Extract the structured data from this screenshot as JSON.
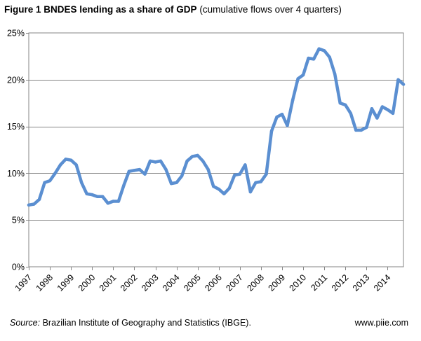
{
  "title": {
    "label": "Figure 1 BNDES lending as a share of GDP",
    "subtitle": "(cumulative flows over 4 quarters)"
  },
  "source": {
    "label": "Source:",
    "text": "Brazilian Institute of Geography and Statistics (IBGE)."
  },
  "site": "www.piie.com",
  "chart_data": {
    "type": "line",
    "title": "Figure 1 BNDES lending as a share of GDP (cumulative flows over 4 quarters)",
    "xlabel": "",
    "ylabel": "",
    "ylim": [
      0,
      25
    ],
    "yticks": [
      0,
      5,
      10,
      15,
      20,
      25
    ],
    "ytick_labels": [
      "0%",
      "5%",
      "10%",
      "15%",
      "20%",
      "25%"
    ],
    "xlim": [
      1997.0,
      2014.75
    ],
    "xticks": [
      1997,
      1998,
      1999,
      2000,
      2001,
      2002,
      2003,
      2004,
      2005,
      2006,
      2007,
      2008,
      2009,
      2010,
      2011,
      2012,
      2013,
      2014
    ],
    "xtick_labels": [
      "1997",
      "1998",
      "1999",
      "2000",
      "2001",
      "2002",
      "2003",
      "2004",
      "2005",
      "2006",
      "2007",
      "2008",
      "2009",
      "2010",
      "2011",
      "2012",
      "2013",
      "2014"
    ],
    "grid": "horizontal",
    "legend": "none",
    "series": [
      {
        "name": "BNDES lending as a share of GDP",
        "color": "#5b8fd1",
        "x": [
          1997.0,
          1997.25,
          1997.5,
          1997.75,
          1998.0,
          1998.25,
          1998.5,
          1998.75,
          1999.0,
          1999.25,
          1999.5,
          1999.75,
          2000.0,
          2000.25,
          2000.5,
          2000.75,
          2001.0,
          2001.25,
          2001.5,
          2001.75,
          2002.0,
          2002.25,
          2002.5,
          2002.75,
          2003.0,
          2003.25,
          2003.5,
          2003.75,
          2004.0,
          2004.25,
          2004.5,
          2004.75,
          2005.0,
          2005.25,
          2005.5,
          2005.75,
          2006.0,
          2006.25,
          2006.5,
          2006.75,
          2007.0,
          2007.25,
          2007.5,
          2007.75,
          2008.0,
          2008.25,
          2008.5,
          2008.75,
          2009.0,
          2009.25,
          2009.5,
          2009.75,
          2010.0,
          2010.25,
          2010.5,
          2010.75,
          2011.0,
          2011.25,
          2011.5,
          2011.75,
          2012.0,
          2012.25,
          2012.5,
          2012.75,
          2013.0,
          2013.25,
          2013.5,
          2013.75,
          2014.0,
          2014.25,
          2014.5,
          2014.75
        ],
        "values": [
          6.6,
          6.7,
          7.2,
          9.0,
          9.2,
          10.0,
          10.9,
          11.5,
          11.4,
          10.9,
          9.0,
          7.8,
          7.7,
          7.5,
          7.5,
          6.8,
          7.0,
          7.0,
          8.7,
          10.2,
          10.3,
          10.4,
          9.9,
          11.3,
          11.2,
          11.3,
          10.4,
          8.9,
          9.0,
          9.7,
          11.3,
          11.8,
          11.9,
          11.3,
          10.4,
          8.6,
          8.3,
          7.8,
          8.4,
          9.8,
          9.9,
          10.9,
          8.0,
          9.0,
          9.1,
          9.9,
          14.5,
          16.0,
          16.3,
          15.1,
          17.8,
          20.1,
          20.5,
          22.3,
          22.2,
          23.3,
          23.1,
          22.4,
          20.6,
          17.5,
          17.3,
          16.4,
          14.6,
          14.6,
          14.9,
          16.9,
          15.9,
          17.1,
          16.8,
          16.4,
          20.0,
          19.5
        ]
      }
    ]
  }
}
